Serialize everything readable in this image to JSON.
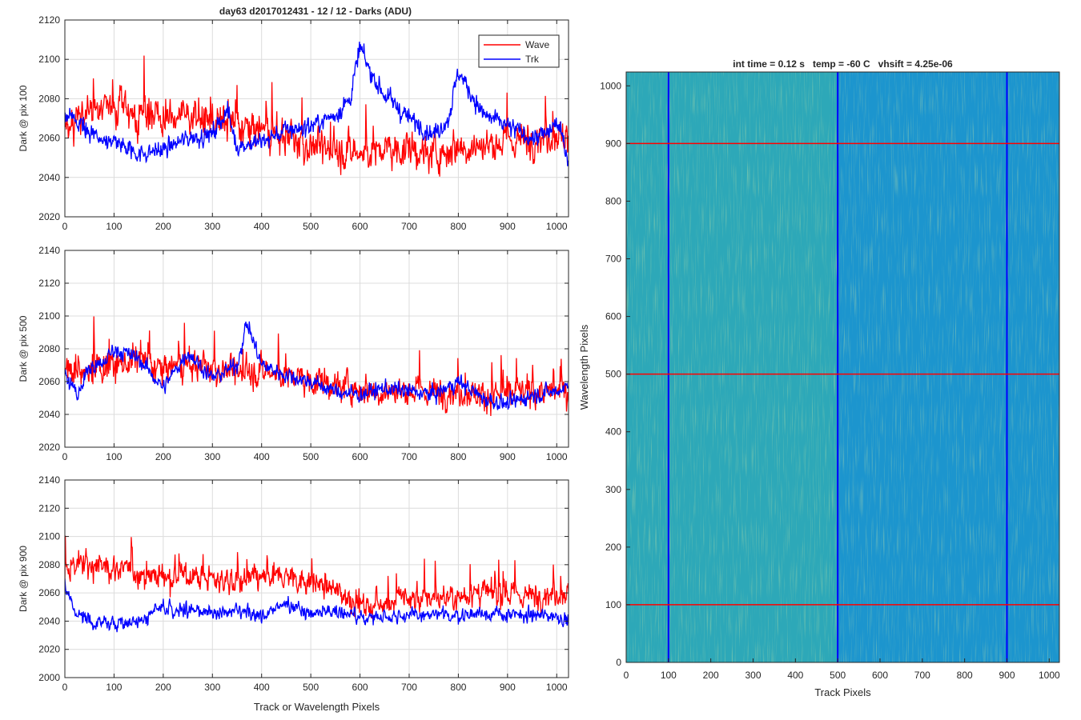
{
  "figure": {
    "title": "day63 d2017012431 - 12 / 12 - Darks (ADU)"
  },
  "chart_data": [
    {
      "type": "line",
      "panel": "top-left",
      "title": "day63 d2017012431 - 12 / 12 - Darks (ADU)",
      "xlabel": "",
      "ylabel": "Dark @ pix 100",
      "xlim": [
        0,
        1024
      ],
      "ylim": [
        2020,
        2120
      ],
      "xticks": [
        0,
        100,
        200,
        300,
        400,
        500,
        600,
        700,
        800,
        900,
        1000
      ],
      "yticks": [
        2020,
        2040,
        2060,
        2080,
        2100,
        2120
      ],
      "grid": true,
      "legend": "top-right",
      "series": [
        {
          "name": "Wave",
          "color": "#ff0000",
          "x": [
            0,
            50,
            100,
            150,
            200,
            250,
            300,
            350,
            400,
            450,
            500,
            550,
            600,
            650,
            700,
            750,
            800,
            850,
            900,
            950,
            1000,
            1024
          ],
          "y": [
            2066,
            2074,
            2076,
            2072,
            2070,
            2072,
            2068,
            2066,
            2064,
            2060,
            2056,
            2054,
            2052,
            2054,
            2054,
            2052,
            2056,
            2056,
            2058,
            2060,
            2062,
            2060
          ]
        },
        {
          "name": "Trk",
          "color": "#0000ff",
          "x": [
            0,
            25,
            50,
            100,
            150,
            200,
            250,
            300,
            330,
            350,
            400,
            450,
            500,
            550,
            580,
            600,
            620,
            650,
            700,
            750,
            780,
            800,
            850,
            900,
            950,
            980,
            1000,
            1024
          ],
          "y": [
            2072,
            2068,
            2062,
            2058,
            2052,
            2054,
            2060,
            2062,
            2074,
            2056,
            2058,
            2064,
            2066,
            2072,
            2080,
            2106,
            2094,
            2082,
            2070,
            2062,
            2070,
            2094,
            2072,
            2066,
            2060,
            2062,
            2068,
            2050
          ]
        }
      ]
    },
    {
      "type": "line",
      "panel": "middle-left",
      "xlabel": "",
      "ylabel": "Dark @ pix 500",
      "xlim": [
        0,
        1024
      ],
      "ylim": [
        2020,
        2140
      ],
      "xticks": [
        0,
        100,
        200,
        300,
        400,
        500,
        600,
        700,
        800,
        900,
        1000
      ],
      "yticks": [
        2020,
        2040,
        2060,
        2080,
        2100,
        2120,
        2140
      ],
      "grid": true,
      "series": [
        {
          "name": "Wave",
          "color": "#ff0000",
          "x": [
            0,
            50,
            100,
            150,
            200,
            250,
            300,
            350,
            400,
            450,
            500,
            550,
            600,
            650,
            700,
            750,
            800,
            850,
            900,
            950,
            1000,
            1024
          ],
          "y": [
            2066,
            2068,
            2070,
            2072,
            2068,
            2070,
            2068,
            2066,
            2066,
            2064,
            2060,
            2058,
            2056,
            2054,
            2054,
            2054,
            2054,
            2052,
            2052,
            2054,
            2054,
            2052
          ]
        },
        {
          "name": "Trk",
          "color": "#0000ff",
          "x": [
            0,
            25,
            50,
            75,
            100,
            150,
            200,
            250,
            300,
            350,
            370,
            400,
            450,
            500,
            550,
            600,
            650,
            700,
            750,
            800,
            850,
            900,
            950,
            1000,
            1024
          ],
          "y": [
            2064,
            2052,
            2068,
            2070,
            2080,
            2074,
            2056,
            2078,
            2062,
            2070,
            2096,
            2070,
            2064,
            2060,
            2054,
            2052,
            2056,
            2054,
            2052,
            2060,
            2050,
            2046,
            2052,
            2054,
            2058
          ]
        }
      ]
    },
    {
      "type": "line",
      "panel": "bottom-left",
      "xlabel": "Track or Wavelength Pixels",
      "ylabel": "Dark @ pix 900",
      "xlim": [
        0,
        1024
      ],
      "ylim": [
        2000,
        2140
      ],
      "xticks": [
        0,
        100,
        200,
        300,
        400,
        500,
        600,
        700,
        800,
        900,
        1000
      ],
      "yticks": [
        2000,
        2020,
        2040,
        2060,
        2080,
        2100,
        2120,
        2140
      ],
      "grid": true,
      "series": [
        {
          "name": "Wave",
          "color": "#ff0000",
          "x": [
            0,
            50,
            100,
            150,
            200,
            250,
            300,
            350,
            400,
            450,
            500,
            550,
            590,
            620,
            650,
            700,
            750,
            800,
            850,
            900,
            950,
            1000,
            1024
          ],
          "y": [
            2078,
            2080,
            2078,
            2074,
            2072,
            2072,
            2070,
            2068,
            2070,
            2072,
            2068,
            2062,
            2054,
            2050,
            2054,
            2056,
            2056,
            2058,
            2060,
            2058,
            2058,
            2060,
            2060
          ]
        },
        {
          "name": "Trk",
          "color": "#0000ff",
          "x": [
            0,
            20,
            50,
            100,
            150,
            200,
            250,
            300,
            350,
            400,
            450,
            500,
            550,
            600,
            650,
            700,
            750,
            800,
            850,
            900,
            950,
            1000,
            1024
          ],
          "y": [
            2066,
            2046,
            2040,
            2038,
            2040,
            2050,
            2048,
            2046,
            2046,
            2044,
            2052,
            2046,
            2048,
            2042,
            2044,
            2044,
            2044,
            2044,
            2046,
            2044,
            2044,
            2044,
            2040
          ]
        }
      ]
    },
    {
      "type": "heatmap",
      "panel": "right",
      "title": "int time = 0.12 s   temp = -60 C   vhsift = 4.25e-06",
      "xlabel": "Track Pixels",
      "ylabel": "Wavelength Pixels",
      "xlim": [
        0,
        1024
      ],
      "ylim": [
        0,
        1024
      ],
      "xticks": [
        0,
        100,
        200,
        300,
        400,
        500,
        600,
        700,
        800,
        900,
        1000
      ],
      "yticks": [
        0,
        100,
        200,
        300,
        400,
        500,
        600,
        700,
        800,
        900,
        1000
      ],
      "colormap": "parula",
      "colors": {
        "base": "#1e9bcc",
        "warm": "#3ab3a8",
        "hot": "#9cc85e",
        "cool": "#1884d4"
      },
      "vertical_lines": {
        "color": "#0000ff",
        "x": [
          100,
          500,
          900
        ]
      },
      "horizontal_lines": {
        "color": "#ff0000",
        "y": [
          100,
          500,
          900
        ]
      }
    }
  ]
}
